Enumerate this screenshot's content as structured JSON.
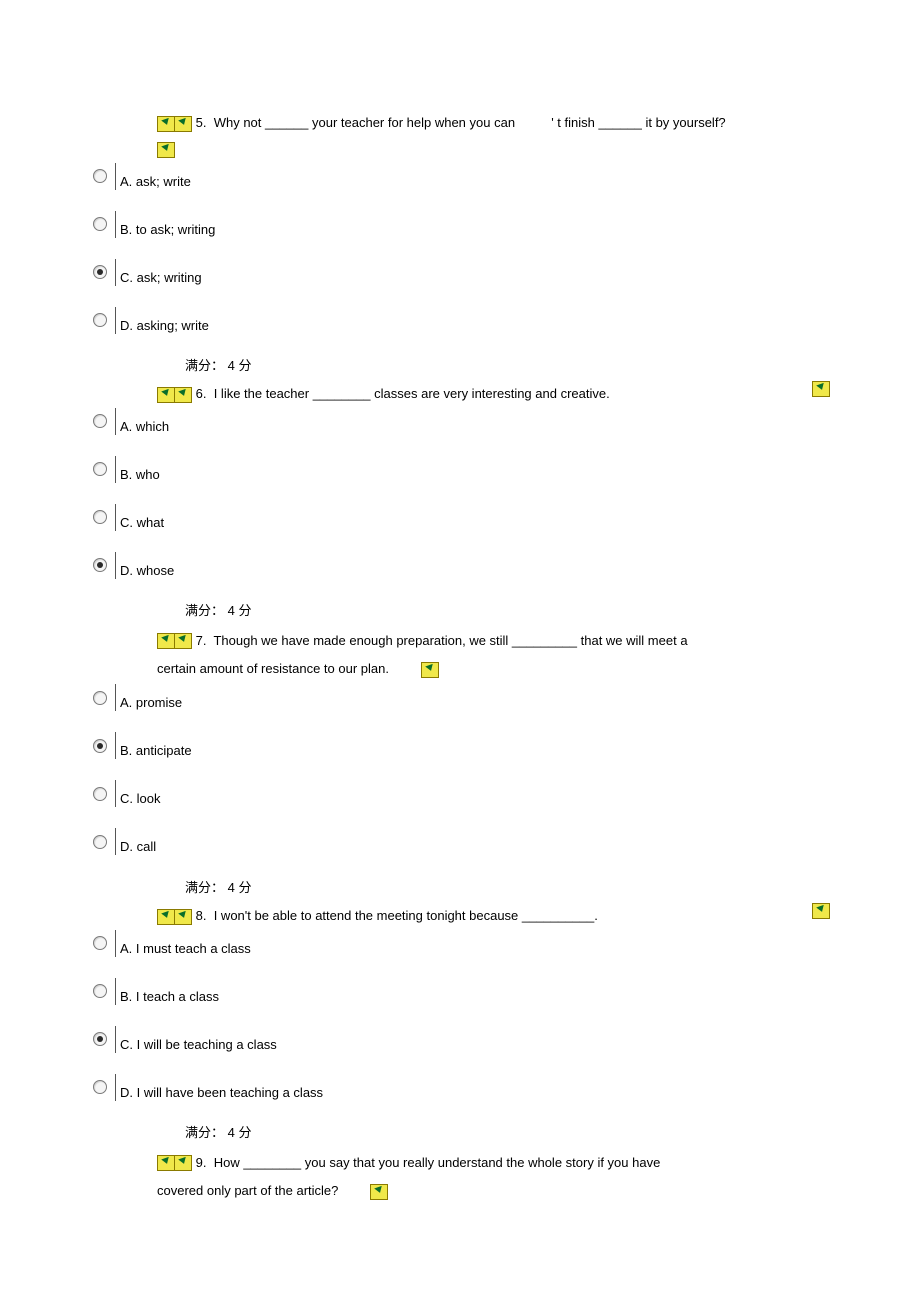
{
  "colors": {
    "icon_bg": "#f0e84a",
    "icon_border": "#8a7a00",
    "icon_arrow": "#0a6e2a",
    "text": "#000000",
    "radio_border": "#7a7a7a",
    "radio_dot": "#2a2a2a",
    "option_divider": "#555555",
    "background": "#ffffff"
  },
  "font": {
    "size_pt": 10,
    "family": "Arial, Microsoft YaHei"
  },
  "score_label": "满分： 4  分",
  "questions": [
    {
      "number": "5.",
      "text_parts": [
        "Why not ______ your teacher for help when you can",
        "'   t finish ______ it by yourself?"
      ],
      "trailing_icon": true,
      "options": [
        {
          "label": "A. ask; write",
          "selected": false
        },
        {
          "label": "B. to ask; writing",
          "selected": false
        },
        {
          "label": "C. ask; writing",
          "selected": true
        },
        {
          "label": "D. asking; write",
          "selected": false
        }
      ]
    },
    {
      "number": "6.",
      "text": "I like the teacher ________ classes are very interesting and creative.",
      "right_icon": true,
      "options": [
        {
          "label": "A. which",
          "selected": false
        },
        {
          "label": "B. who",
          "selected": false
        },
        {
          "label": "C. what",
          "selected": false
        },
        {
          "label": "D. whose",
          "selected": true
        }
      ]
    },
    {
      "number": "7.",
      "text_line1": "Though we have made enough preparation, we still _________ that we will meet a",
      "text_line2": "certain amount of resistance to our plan.",
      "inline_icon_after_line2": true,
      "options": [
        {
          "label": "A. promise",
          "selected": false
        },
        {
          "label": "B. anticipate",
          "selected": true
        },
        {
          "label": "C. look",
          "selected": false
        },
        {
          "label": "D. call",
          "selected": false
        }
      ]
    },
    {
      "number": "8.",
      "text": "I won't be able to attend the meeting tonight because __________.",
      "right_icon": true,
      "options": [
        {
          "label": "A. I must teach a class",
          "selected": false
        },
        {
          "label": "B. I teach a class",
          "selected": false
        },
        {
          "label": "C. I will be teaching a class",
          "selected": true
        },
        {
          "label": "D. I will have been teaching a class",
          "selected": false
        }
      ]
    },
    {
      "number": "9.",
      "text_line1": "How ________ you say that you really understand the whole story if you have",
      "text_line2": "covered only part of the article?",
      "inline_icon_after_line2": true
    }
  ]
}
